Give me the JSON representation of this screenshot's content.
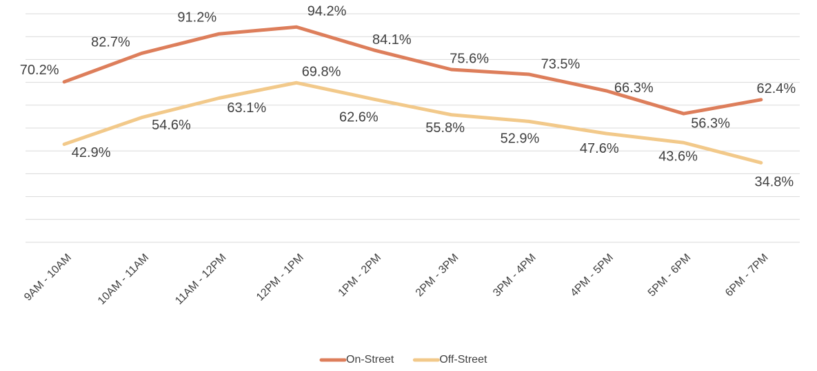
{
  "chart_data": {
    "type": "line",
    "categories": [
      "9AM - 10AM",
      "10AM - 11AM",
      "11AM - 12PM",
      "12PM - 1PM",
      "1PM - 2PM",
      "2PM - 3PM",
      "3PM - 4PM",
      "4PM - 5PM",
      "5PM - 6PM",
      "6PM - 7PM"
    ],
    "series": [
      {
        "name": "On-Street",
        "color": "#dd7e5b",
        "values": [
          70.2,
          82.7,
          91.2,
          94.2,
          84.1,
          75.6,
          73.5,
          66.3,
          56.3,
          62.4
        ],
        "value_labels": [
          "70.2%",
          "82.7%",
          "91.2%",
          "94.2%",
          "84.1%",
          "75.6%",
          "73.5%",
          "66.3%",
          "56.3%",
          "62.4%"
        ]
      },
      {
        "name": "Off-Street",
        "color": "#f2c98a",
        "values": [
          42.9,
          54.6,
          63.1,
          69.8,
          62.6,
          55.8,
          52.9,
          47.6,
          43.6,
          34.8
        ],
        "value_labels": [
          "42.9%",
          "54.6%",
          "63.1%",
          "69.8%",
          "62.6%",
          "55.8%",
          "52.9%",
          "47.6%",
          "43.6%",
          "34.8%"
        ]
      }
    ],
    "ylim": [
      0,
      100
    ],
    "yticks": [
      0,
      10,
      20,
      30,
      40,
      50,
      60,
      70,
      80,
      90,
      100
    ],
    "grid": true,
    "legend": "bottom"
  }
}
